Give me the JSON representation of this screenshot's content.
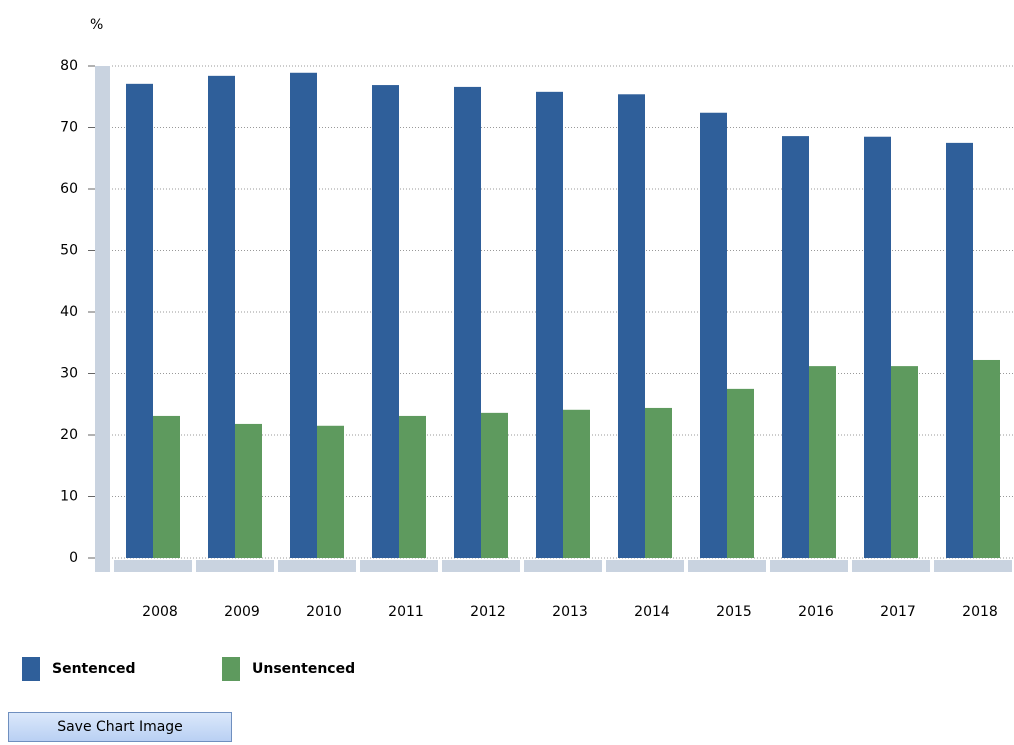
{
  "chart_data": {
    "type": "bar",
    "y_label": "%",
    "categories": [
      "2008",
      "2009",
      "2010",
      "2011",
      "2012",
      "2013",
      "2014",
      "2015",
      "2016",
      "2017",
      "2018"
    ],
    "series": [
      {
        "name": "Sentenced",
        "color": "#2f5f9a",
        "values": [
          77.1,
          78.4,
          78.9,
          76.9,
          76.6,
          75.8,
          75.4,
          72.4,
          68.6,
          68.5,
          67.5
        ]
      },
      {
        "name": "Unsentenced",
        "color": "#5e9a5e",
        "values": [
          23.1,
          21.8,
          21.5,
          23.1,
          23.6,
          24.1,
          24.4,
          27.5,
          31.2,
          31.2,
          32.2
        ]
      }
    ],
    "ylim": [
      0,
      80
    ],
    "yticks": [
      0,
      10,
      20,
      30,
      40,
      50,
      60,
      70,
      80
    ],
    "grid": true
  },
  "button": "Save Chart Image"
}
